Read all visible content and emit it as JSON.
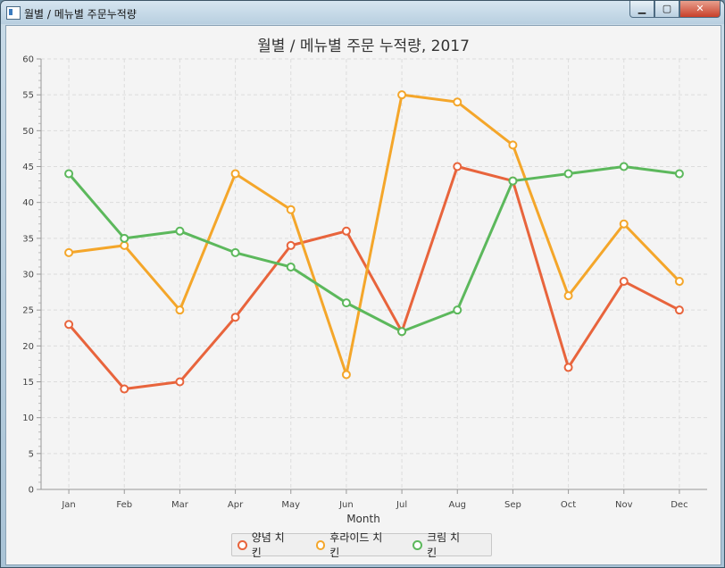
{
  "window": {
    "title": "월별 / 메뉴별 주문누적량",
    "controls": {
      "minimize": "▁",
      "maximize": "▢",
      "close": "✕"
    }
  },
  "chart_data": {
    "type": "line",
    "title": "월별 / 메뉴별 주문 누적량, 2017",
    "xlabel": "Month",
    "ylabel": "",
    "ylim": [
      0,
      60
    ],
    "yticks": [
      0,
      5,
      10,
      15,
      20,
      25,
      30,
      35,
      40,
      45,
      50,
      55,
      60
    ],
    "grid": true,
    "legend_position": "bottom",
    "categories": [
      "Jan",
      "Feb",
      "Mar",
      "Apr",
      "May",
      "Jun",
      "Jul",
      "Aug",
      "Sep",
      "Oct",
      "Nov",
      "Dec"
    ],
    "series": [
      {
        "name": "양념 치킨",
        "color": "#e8643c",
        "values": [
          23,
          14,
          15,
          24,
          34,
          36,
          22,
          45,
          43,
          17,
          29,
          25
        ]
      },
      {
        "name": "후라이드 치킨",
        "color": "#f4a62a",
        "values": [
          33,
          34,
          25,
          44,
          39,
          16,
          55,
          54,
          48,
          27,
          37,
          29
        ]
      },
      {
        "name": "크림 치킨",
        "color": "#5cb85c",
        "values": [
          44,
          35,
          36,
          33,
          31,
          26,
          22,
          25,
          43,
          44,
          45,
          44
        ]
      }
    ]
  }
}
